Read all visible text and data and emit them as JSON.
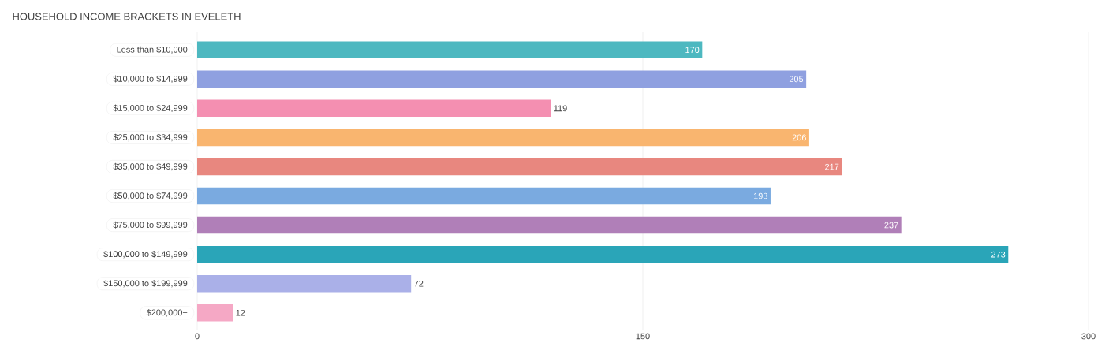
{
  "chart_data": {
    "type": "bar",
    "orientation": "horizontal",
    "title": "HOUSEHOLD INCOME BRACKETS IN EVELETH",
    "categories": [
      "Less than $10,000",
      "$10,000 to $14,999",
      "$15,000 to $24,999",
      "$25,000 to $34,999",
      "$35,000 to $49,999",
      "$50,000 to $74,999",
      "$75,000 to $99,999",
      "$100,000 to $149,999",
      "$150,000 to $199,999",
      "$200,000+"
    ],
    "values": [
      170,
      205,
      119,
      206,
      217,
      193,
      237,
      273,
      72,
      12
    ],
    "colors": [
      "#4db8c0",
      "#8fa0e0",
      "#f48fb1",
      "#f9b56f",
      "#e8877f",
      "#7aaae0",
      "#b07fb8",
      "#2aa5b8",
      "#aab0e8",
      "#f5a8c5"
    ],
    "xlim": [
      0,
      300
    ],
    "xticks": [
      0,
      150,
      300
    ],
    "grid": "x",
    "data_labels": true
  }
}
